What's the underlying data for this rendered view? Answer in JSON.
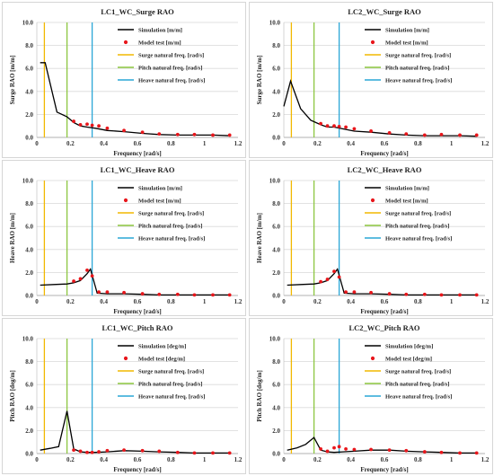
{
  "colors": {
    "simulation": "#000000",
    "model_test": "#e8161b",
    "surge_line": "#f2b800",
    "pitch_line": "#8cc63f",
    "heave_line": "#2aa7d6",
    "grid": "#d9d9d9"
  },
  "natural_frequencies": {
    "surge": 0.045,
    "pitch": 0.18,
    "heave": 0.33
  },
  "chart_data": [
    {
      "type": "line",
      "title": "LC1_WC_Surge RAO",
      "xlabel": "Frequency [rad/s]",
      "ylabel": "Surge RAO [m/m]",
      "xlim": [
        0,
        1.2
      ],
      "ylim": [
        0,
        10.0
      ],
      "xticks": [
        "0",
        "0.2",
        "0.4",
        "0.6",
        "0.8",
        "1",
        "1.2"
      ],
      "yticks": [
        "0.0",
        "2.0",
        "4.0",
        "6.0",
        "8.0",
        "10.0"
      ],
      "grid": true,
      "legend_position": "top-right",
      "series": [
        {
          "name": "Simulation [m/m]",
          "kind": "line",
          "x": [
            0.02,
            0.05,
            0.12,
            0.18,
            0.22,
            0.26,
            0.3,
            0.35,
            0.42,
            0.52,
            0.63,
            0.73,
            0.84,
            0.94,
            1.05,
            1.15
          ],
          "y": [
            6.5,
            6.5,
            2.2,
            1.8,
            1.3,
            1.0,
            0.9,
            0.8,
            0.6,
            0.5,
            0.35,
            0.25,
            0.2,
            0.2,
            0.2,
            0.15
          ]
        },
        {
          "name": "Model test [m/m]",
          "kind": "markers",
          "x": [
            0.22,
            0.26,
            0.3,
            0.33,
            0.37,
            0.42,
            0.52,
            0.63,
            0.73,
            0.84,
            0.94,
            1.05,
            1.15
          ],
          "y": [
            1.4,
            1.1,
            1.15,
            1.05,
            1.0,
            0.8,
            0.6,
            0.45,
            0.3,
            0.25,
            0.25,
            0.2,
            0.2
          ]
        },
        {
          "name": "Surge natural freq. [rad/s]",
          "kind": "vline",
          "x": 0.045
        },
        {
          "name": "Pitch natural freq. [rad/s]",
          "kind": "vline",
          "x": 0.18
        },
        {
          "name": "Heave natural freq. [rad/s]",
          "kind": "vline",
          "x": 0.33
        }
      ]
    },
    {
      "type": "line",
      "title": "LC2_WC_Surge RAO",
      "xlabel": "Frequency [rad/s]",
      "ylabel": "Surge RAO [m/m]",
      "xlim": [
        0,
        1.2
      ],
      "ylim": [
        0,
        10.0
      ],
      "xticks": [
        "0",
        "0.2",
        "0.4",
        "0.6",
        "0.8",
        "1",
        "1.2"
      ],
      "yticks": [
        "0.0",
        "2.0",
        "4.0",
        "6.0",
        "8.0",
        "10.0"
      ],
      "grid": true,
      "legend_position": "top-right",
      "series": [
        {
          "name": "Simulation [m/m]",
          "kind": "line",
          "x": [
            0.0,
            0.04,
            0.1,
            0.16,
            0.22,
            0.26,
            0.3,
            0.35,
            0.42,
            0.52,
            0.63,
            0.73,
            0.84,
            0.94,
            1.05,
            1.15
          ],
          "y": [
            2.7,
            4.9,
            2.5,
            1.5,
            1.1,
            0.9,
            0.9,
            0.75,
            0.55,
            0.45,
            0.3,
            0.2,
            0.15,
            0.15,
            0.15,
            0.1
          ]
        },
        {
          "name": "Model test [m/m]",
          "kind": "markers",
          "x": [
            0.22,
            0.26,
            0.3,
            0.33,
            0.37,
            0.42,
            0.52,
            0.63,
            0.73,
            0.84,
            0.94,
            1.05,
            1.15
          ],
          "y": [
            1.2,
            1.0,
            1.0,
            0.95,
            0.9,
            0.75,
            0.55,
            0.4,
            0.3,
            0.2,
            0.25,
            0.2,
            0.2
          ]
        },
        {
          "name": "Surge natural freq. [rad/s]",
          "kind": "vline",
          "x": 0.045
        },
        {
          "name": "Pitch natural freq. [rad/s]",
          "kind": "vline",
          "x": 0.18
        },
        {
          "name": "Heave natural freq. [rad/s]",
          "kind": "vline",
          "x": 0.33
        }
      ]
    },
    {
      "type": "line",
      "title": "LC1_WC_Heave RAO",
      "xlabel": "Frequency [rad/s]",
      "ylabel": "Heave RAO [m/m]",
      "xlim": [
        0,
        1.2
      ],
      "ylim": [
        0,
        10.0
      ],
      "xticks": [
        "0",
        "0.2",
        "0.4",
        "0.6",
        "0.8",
        "1",
        "1.2"
      ],
      "yticks": [
        "0.0",
        "2.0",
        "4.0",
        "6.0",
        "8.0",
        "10.0"
      ],
      "grid": true,
      "legend_position": "top-right",
      "series": [
        {
          "name": "Simulation [m/m]",
          "kind": "line",
          "x": [
            0.02,
            0.1,
            0.18,
            0.22,
            0.26,
            0.3,
            0.32,
            0.36,
            0.42,
            0.52,
            0.63,
            0.73,
            0.84,
            0.94,
            1.05,
            1.15
          ],
          "y": [
            0.9,
            0.95,
            1.0,
            1.1,
            1.3,
            1.9,
            2.3,
            0.2,
            0.15,
            0.15,
            0.1,
            0.05,
            0.05,
            0.05,
            0.05,
            0.05
          ]
        },
        {
          "name": "Model test [m/m]",
          "kind": "markers",
          "x": [
            0.22,
            0.26,
            0.3,
            0.33,
            0.37,
            0.42,
            0.52,
            0.63,
            0.73,
            0.84,
            0.94,
            1.05,
            1.15
          ],
          "y": [
            1.25,
            1.45,
            2.2,
            1.7,
            0.3,
            0.3,
            0.25,
            0.15,
            0.1,
            0.1,
            0.05,
            0.05,
            0.05
          ]
        },
        {
          "name": "Surge natural freq. [rad/s]",
          "kind": "vline",
          "x": 0.045
        },
        {
          "name": "Pitch natural freq. [rad/s]",
          "kind": "vline",
          "x": 0.18
        },
        {
          "name": "Heave natural freq. [rad/s]",
          "kind": "vline",
          "x": 0.33
        }
      ]
    },
    {
      "type": "line",
      "title": "LC2_WC_Heave RAO",
      "xlabel": "Frequency [rad/s]",
      "ylabel": "Heave RAO [m/m]",
      "xlim": [
        0,
        1.2
      ],
      "ylim": [
        0,
        10.0
      ],
      "xticks": [
        "0",
        "0.2",
        "0.4",
        "0.6",
        "0.8",
        "1",
        "1.2"
      ],
      "yticks": [
        "0.0",
        "2.0",
        "4.0",
        "6.0",
        "8.0",
        "10.0"
      ],
      "grid": true,
      "legend_position": "top-right",
      "series": [
        {
          "name": "Simulation [m/m]",
          "kind": "line",
          "x": [
            0.02,
            0.1,
            0.18,
            0.22,
            0.26,
            0.3,
            0.32,
            0.36,
            0.42,
            0.52,
            0.63,
            0.73,
            0.84,
            0.94,
            1.05,
            1.15
          ],
          "y": [
            0.9,
            0.95,
            1.0,
            1.1,
            1.3,
            1.9,
            2.3,
            0.2,
            0.15,
            0.15,
            0.1,
            0.05,
            0.05,
            0.05,
            0.05,
            0.05
          ]
        },
        {
          "name": "Model test [m/m]",
          "kind": "markers",
          "x": [
            0.22,
            0.26,
            0.3,
            0.33,
            0.37,
            0.42,
            0.52,
            0.63,
            0.73,
            0.84,
            0.94,
            1.05,
            1.15
          ],
          "y": [
            1.2,
            1.4,
            2.1,
            1.6,
            0.3,
            0.3,
            0.25,
            0.15,
            0.1,
            0.1,
            0.05,
            0.05,
            0.05
          ]
        },
        {
          "name": "Surge natural freq. [rad/s]",
          "kind": "vline",
          "x": 0.045
        },
        {
          "name": "Pitch natural freq. [rad/s]",
          "kind": "vline",
          "x": 0.18
        },
        {
          "name": "Heave natural freq. [rad/s]",
          "kind": "vline",
          "x": 0.33
        }
      ]
    },
    {
      "type": "line",
      "title": "LC1_WC_Pitch RAO",
      "xlabel": "Frequency [rad/s]",
      "ylabel": "Pitch RAO [deg/m]",
      "xlim": [
        0,
        1.2
      ],
      "ylim": [
        0,
        10.0
      ],
      "xticks": [
        "0",
        "0.2",
        "0.4",
        "0.6",
        "0.8",
        "1",
        "1.2"
      ],
      "yticks": [
        "0.0",
        "2.0",
        "4.0",
        "6.0",
        "8.0",
        "10.0"
      ],
      "grid": true,
      "legend_position": "top-right",
      "series": [
        {
          "name": "Simulation [deg/m]",
          "kind": "line",
          "x": [
            0.02,
            0.08,
            0.13,
            0.18,
            0.22,
            0.26,
            0.3,
            0.35,
            0.42,
            0.52,
            0.63,
            0.73,
            0.84,
            0.94,
            1.05,
            1.15
          ],
          "y": [
            0.3,
            0.45,
            0.6,
            3.7,
            0.4,
            0.15,
            0.1,
            0.1,
            0.15,
            0.25,
            0.2,
            0.15,
            0.1,
            0.05,
            0.05,
            0.05
          ]
        },
        {
          "name": "Model test [deg/m]",
          "kind": "markers",
          "x": [
            0.22,
            0.26,
            0.3,
            0.33,
            0.37,
            0.42,
            0.52,
            0.63,
            0.73,
            0.84,
            0.94,
            1.05,
            1.15
          ],
          "y": [
            0.3,
            0.2,
            0.1,
            0.1,
            0.15,
            0.25,
            0.3,
            0.25,
            0.2,
            0.1,
            0.05,
            0.05,
            0.05
          ]
        },
        {
          "name": "Surge natural freq. [rad/s]",
          "kind": "vline",
          "x": 0.045
        },
        {
          "name": "Pitch natural freq. [rad/s]",
          "kind": "vline",
          "x": 0.18
        },
        {
          "name": "Heave natural freq. [rad/s]",
          "kind": "vline",
          "x": 0.33
        }
      ]
    },
    {
      "type": "line",
      "title": "LC2_WC_Pitch RAO",
      "xlabel": "Frequency [rad/s]",
      "ylabel": "Pitch RAO [deg/m]",
      "xlim": [
        0,
        1.2
      ],
      "ylim": [
        0,
        10.0
      ],
      "xticks": [
        "0",
        "0.2",
        "0.4",
        "0.6",
        "0.8",
        "1",
        "1.2"
      ],
      "yticks": [
        "0.0",
        "2.0",
        "4.0",
        "6.0",
        "8.0",
        "10.0"
      ],
      "grid": true,
      "legend_position": "top-right",
      "series": [
        {
          "name": "Simulation [deg/m]",
          "kind": "line",
          "x": [
            0.02,
            0.08,
            0.13,
            0.18,
            0.22,
            0.26,
            0.3,
            0.35,
            0.42,
            0.52,
            0.63,
            0.73,
            0.84,
            0.94,
            1.05,
            1.15
          ],
          "y": [
            0.3,
            0.5,
            0.8,
            1.4,
            0.3,
            0.15,
            0.1,
            0.15,
            0.2,
            0.3,
            0.3,
            0.2,
            0.15,
            0.1,
            0.05,
            0.05
          ]
        },
        {
          "name": "Model test [deg/m]",
          "kind": "markers",
          "x": [
            0.22,
            0.26,
            0.3,
            0.33,
            0.37,
            0.42,
            0.52,
            0.63,
            0.73,
            0.84,
            0.94,
            1.05,
            1.15
          ],
          "y": [
            0.4,
            0.2,
            0.5,
            0.6,
            0.4,
            0.35,
            0.35,
            0.3,
            0.25,
            0.15,
            0.1,
            0.05,
            0.05
          ]
        },
        {
          "name": "Surge natural freq. [rad/s]",
          "kind": "vline",
          "x": 0.045
        },
        {
          "name": "Pitch natural freq. [rad/s]",
          "kind": "vline",
          "x": 0.18
        },
        {
          "name": "Heave natural freq. [rad/s]",
          "kind": "vline",
          "x": 0.33
        }
      ]
    }
  ]
}
